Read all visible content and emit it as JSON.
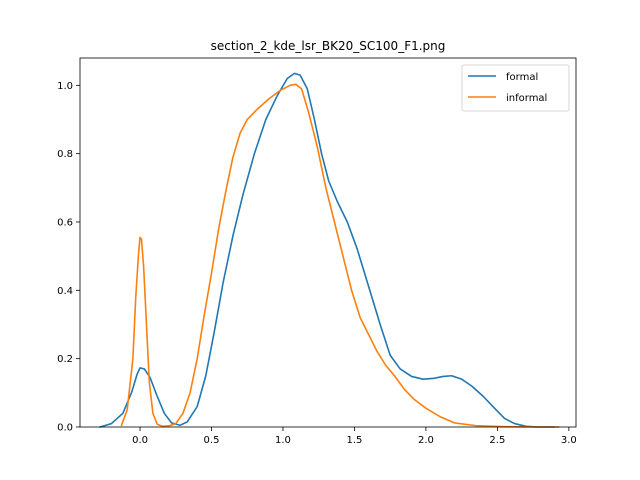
{
  "chart_data": {
    "type": "line",
    "title": "section_2_kde_lsr_BK20_SC100_F1.png",
    "xlabel": "",
    "ylabel": "",
    "xlim": [
      -0.42,
      3.05
    ],
    "ylim": [
      0,
      1.08
    ],
    "x_ticks": [
      0.0,
      0.5,
      1.0,
      1.5,
      2.0,
      2.5,
      3.0
    ],
    "x_tick_labels": [
      "0.0",
      "0.5",
      "1.0",
      "1.5",
      "2.0",
      "2.5",
      "3.0"
    ],
    "y_ticks": [
      0.0,
      0.2,
      0.4,
      0.6,
      0.8,
      1.0
    ],
    "y_tick_labels": [
      "0.0",
      "0.2",
      "0.4",
      "0.6",
      "0.8",
      "1.0"
    ],
    "grid": false,
    "legend_position": "top-right",
    "series": [
      {
        "name": "formal",
        "color": "#1f77b4",
        "points": [
          [
            -0.28,
            0.0
          ],
          [
            -0.2,
            0.01
          ],
          [
            -0.12,
            0.04
          ],
          [
            -0.06,
            0.1
          ],
          [
            -0.02,
            0.155
          ],
          [
            0.0,
            0.173
          ],
          [
            0.03,
            0.17
          ],
          [
            0.07,
            0.145
          ],
          [
            0.12,
            0.09
          ],
          [
            0.17,
            0.04
          ],
          [
            0.22,
            0.012
          ],
          [
            0.28,
            0.005
          ],
          [
            0.33,
            0.015
          ],
          [
            0.4,
            0.06
          ],
          [
            0.46,
            0.15
          ],
          [
            0.52,
            0.28
          ],
          [
            0.58,
            0.42
          ],
          [
            0.65,
            0.56
          ],
          [
            0.72,
            0.68
          ],
          [
            0.8,
            0.8
          ],
          [
            0.88,
            0.9
          ],
          [
            0.96,
            0.97
          ],
          [
            1.03,
            1.02
          ],
          [
            1.08,
            1.035
          ],
          [
            1.12,
            1.03
          ],
          [
            1.17,
            0.99
          ],
          [
            1.22,
            0.9
          ],
          [
            1.27,
            0.8
          ],
          [
            1.32,
            0.72
          ],
          [
            1.38,
            0.66
          ],
          [
            1.45,
            0.6
          ],
          [
            1.52,
            0.52
          ],
          [
            1.6,
            0.41
          ],
          [
            1.68,
            0.3
          ],
          [
            1.75,
            0.21
          ],
          [
            1.82,
            0.17
          ],
          [
            1.9,
            0.148
          ],
          [
            1.98,
            0.14
          ],
          [
            2.05,
            0.142
          ],
          [
            2.12,
            0.148
          ],
          [
            2.18,
            0.15
          ],
          [
            2.25,
            0.14
          ],
          [
            2.32,
            0.12
          ],
          [
            2.4,
            0.09
          ],
          [
            2.48,
            0.055
          ],
          [
            2.55,
            0.025
          ],
          [
            2.62,
            0.01
          ],
          [
            2.7,
            0.002
          ],
          [
            2.78,
            0.0
          ],
          [
            2.9,
            0.0
          ]
        ]
      },
      {
        "name": "informal",
        "color": "#ff7f0e",
        "points": [
          [
            -0.13,
            0.005
          ],
          [
            -0.09,
            0.05
          ],
          [
            -0.05,
            0.2
          ],
          [
            -0.03,
            0.38
          ],
          [
            -0.01,
            0.51
          ],
          [
            0.0,
            0.555
          ],
          [
            0.01,
            0.55
          ],
          [
            0.025,
            0.47
          ],
          [
            0.045,
            0.3
          ],
          [
            0.065,
            0.13
          ],
          [
            0.09,
            0.04
          ],
          [
            0.12,
            0.008
          ],
          [
            0.16,
            0.002
          ],
          [
            0.2,
            0.003
          ],
          [
            0.25,
            0.01
          ],
          [
            0.3,
            0.04
          ],
          [
            0.35,
            0.1
          ],
          [
            0.4,
            0.2
          ],
          [
            0.45,
            0.33
          ],
          [
            0.5,
            0.45
          ],
          [
            0.55,
            0.58
          ],
          [
            0.6,
            0.69
          ],
          [
            0.65,
            0.79
          ],
          [
            0.7,
            0.86
          ],
          [
            0.75,
            0.9
          ],
          [
            0.82,
            0.93
          ],
          [
            0.9,
            0.96
          ],
          [
            0.98,
            0.985
          ],
          [
            1.05,
            1.0
          ],
          [
            1.09,
            1.003
          ],
          [
            1.13,
            0.99
          ],
          [
            1.18,
            0.92
          ],
          [
            1.24,
            0.82
          ],
          [
            1.3,
            0.7
          ],
          [
            1.36,
            0.6
          ],
          [
            1.42,
            0.5
          ],
          [
            1.48,
            0.4
          ],
          [
            1.54,
            0.32
          ],
          [
            1.6,
            0.27
          ],
          [
            1.66,
            0.22
          ],
          [
            1.72,
            0.18
          ],
          [
            1.78,
            0.15
          ],
          [
            1.85,
            0.11
          ],
          [
            1.92,
            0.08
          ],
          [
            2.0,
            0.055
          ],
          [
            2.1,
            0.03
          ],
          [
            2.2,
            0.012
          ],
          [
            2.35,
            0.004
          ],
          [
            2.55,
            0.001
          ],
          [
            2.8,
            0.0
          ],
          [
            2.93,
            0.0
          ]
        ]
      }
    ]
  }
}
